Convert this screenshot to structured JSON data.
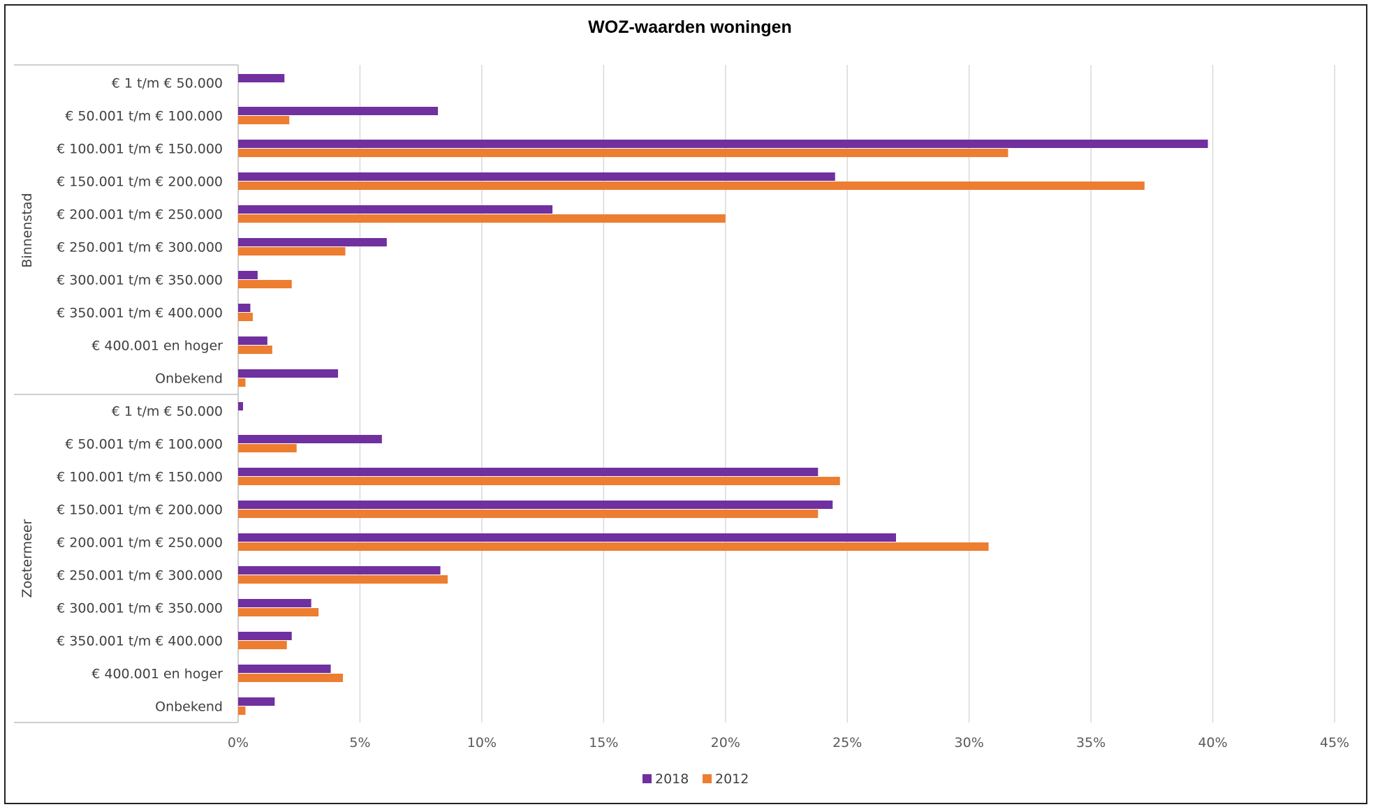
{
  "chart_data": {
    "type": "bar",
    "orientation": "horizontal",
    "title": "WOZ-waarden woningen",
    "groups": [
      {
        "name": "Binnenstad",
        "categories": [
          "€ 1 t/m € 50.000",
          "€ 50.001 t/m € 100.000",
          "€ 100.001 t/m € 150.000",
          "€ 150.001 t/m € 200.000",
          "€ 200.001 t/m € 250.000",
          "€ 250.001 t/m € 300.000",
          "€ 300.001 t/m € 350.000",
          "€ 350.001 t/m € 400.000",
          "€ 400.001 en hoger",
          "Onbekend"
        ]
      },
      {
        "name": "Zoetermeer",
        "categories": [
          "€ 1 t/m € 50.000",
          "€ 50.001 t/m € 100.000",
          "€ 100.001 t/m € 150.000",
          "€ 150.001 t/m € 200.000",
          "€ 200.001 t/m € 250.000",
          "€ 250.001 t/m € 300.000",
          "€ 300.001 t/m € 350.000",
          "€ 350.001 t/m € 400.000",
          "€ 400.001 en hoger",
          "Onbekend"
        ]
      }
    ],
    "series": [
      {
        "name": "2018",
        "color": "#7030A0",
        "values": [
          1.9,
          8.2,
          39.8,
          24.5,
          12.9,
          6.1,
          0.8,
          0.5,
          1.2,
          4.1,
          0.2,
          5.9,
          23.8,
          24.4,
          27.0,
          8.3,
          3.0,
          2.2,
          3.8,
          1.5
        ]
      },
      {
        "name": "2012",
        "color": "#ED7D31",
        "values": [
          0.0,
          2.1,
          31.6,
          37.2,
          20.0,
          4.4,
          2.2,
          0.6,
          1.4,
          0.3,
          0.0,
          2.4,
          24.7,
          23.8,
          30.8,
          8.6,
          3.3,
          2.0,
          4.3,
          0.3
        ]
      }
    ],
    "xlim": [
      0,
      45
    ],
    "xticks": [
      "0%",
      "5%",
      "10%",
      "15%",
      "20%",
      "25%",
      "30%",
      "35%",
      "40%",
      "45%"
    ],
    "grid": true,
    "legend_position": "bottom"
  }
}
